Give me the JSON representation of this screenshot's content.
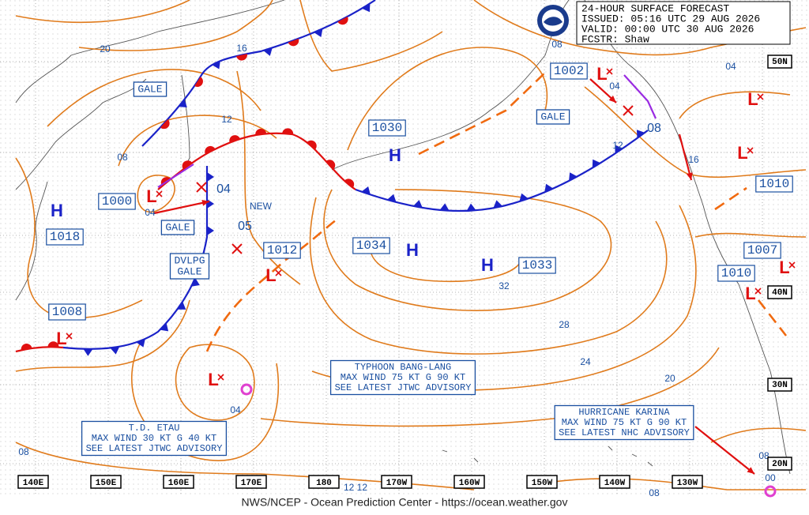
{
  "header": {
    "lines": [
      "24-HOUR SURFACE FORECAST",
      "ISSUED: 05:16 UTC 29 AUG 2026",
      "VALID:  00:00 UTC 30 AUG 2026",
      "FCSTR:  Shaw"
    ]
  },
  "pressure_labels": [
    "1000",
    "1018",
    "1008",
    "1030",
    "1034",
    "1012",
    "1033",
    "1002",
    "1010",
    "1007",
    "1010"
  ],
  "warning_boxes": [
    {
      "lines": [
        "GALE"
      ]
    },
    {
      "lines": [
        "GALE"
      ]
    },
    {
      "lines": [
        "GALE"
      ]
    },
    {
      "lines": [
        "DVLPG",
        "GALE"
      ]
    }
  ],
  "center_labels": [
    "04",
    "05",
    "NEW",
    "08"
  ],
  "highs": [
    "H",
    "H",
    "H",
    "H"
  ],
  "lows": [
    "L",
    "L",
    "L",
    "L",
    "L",
    "L",
    "L",
    "L",
    "L"
  ],
  "isobar_labels": [
    "20",
    "16",
    "12",
    "08",
    "04",
    "04",
    "12",
    "16",
    "04",
    "08",
    "32",
    "28",
    "24",
    "20",
    "04",
    "08",
    "12 12",
    "08",
    "00",
    "08"
  ],
  "longitudes": [
    "140E",
    "150E",
    "160E",
    "170E",
    "180",
    "170W",
    "160W",
    "150W",
    "140W",
    "130W"
  ],
  "latitudes": [
    "50N",
    "40N",
    "30N",
    "20N"
  ],
  "advisories": [
    {
      "lines": [
        "TYPHOON BANG-LANG",
        "MAX WIND 75 KT G 90 KT",
        "SEE LATEST JTWC ADVISORY"
      ]
    },
    {
      "lines": [
        "T.D. ETAU",
        "MAX WIND 30 KT G 40 KT",
        "SEE LATEST JTWC ADVISORY"
      ]
    },
    {
      "lines": [
        "HURRICANE KARINA",
        "MAX WIND 75 KT G 90 KT",
        "SEE LATEST NHC ADVISORY"
      ]
    }
  ],
  "footer": "NWS/NCEP - Ocean Prediction Center - https://ocean.weather.gov"
}
